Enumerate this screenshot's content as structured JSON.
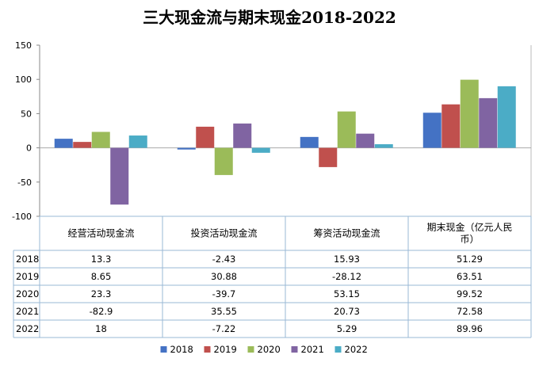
{
  "chart_data": {
    "type": "bar",
    "title": "三大现金流与期末现金2018-2022",
    "categories": [
      "经营活动现金流",
      "投资活动现金流",
      "筹资活动现金流",
      "期末现金（亿元人民币）"
    ],
    "series": [
      {
        "name": "2018",
        "color": "#4472c4",
        "values": [
          13.3,
          -2.43,
          15.93,
          51.29
        ]
      },
      {
        "name": "2019",
        "color": "#c0504d",
        "values": [
          8.65,
          30.88,
          -28.12,
          63.51
        ]
      },
      {
        "name": "2020",
        "color": "#9bbb59",
        "values": [
          23.3,
          -39.7,
          53.15,
          99.52
        ]
      },
      {
        "name": "2021",
        "color": "#8064a2",
        "values": [
          -82.9,
          35.55,
          20.73,
          72.58
        ]
      },
      {
        "name": "2022",
        "color": "#4bacc6",
        "values": [
          18,
          -7.22,
          5.29,
          89.96
        ]
      }
    ],
    "y_ticks": [
      150,
      100,
      50,
      0,
      -50,
      -100
    ],
    "ylim": [
      -100,
      150
    ],
    "xlabel": "",
    "ylabel": "",
    "legend_position": "bottom",
    "data_table": true
  }
}
